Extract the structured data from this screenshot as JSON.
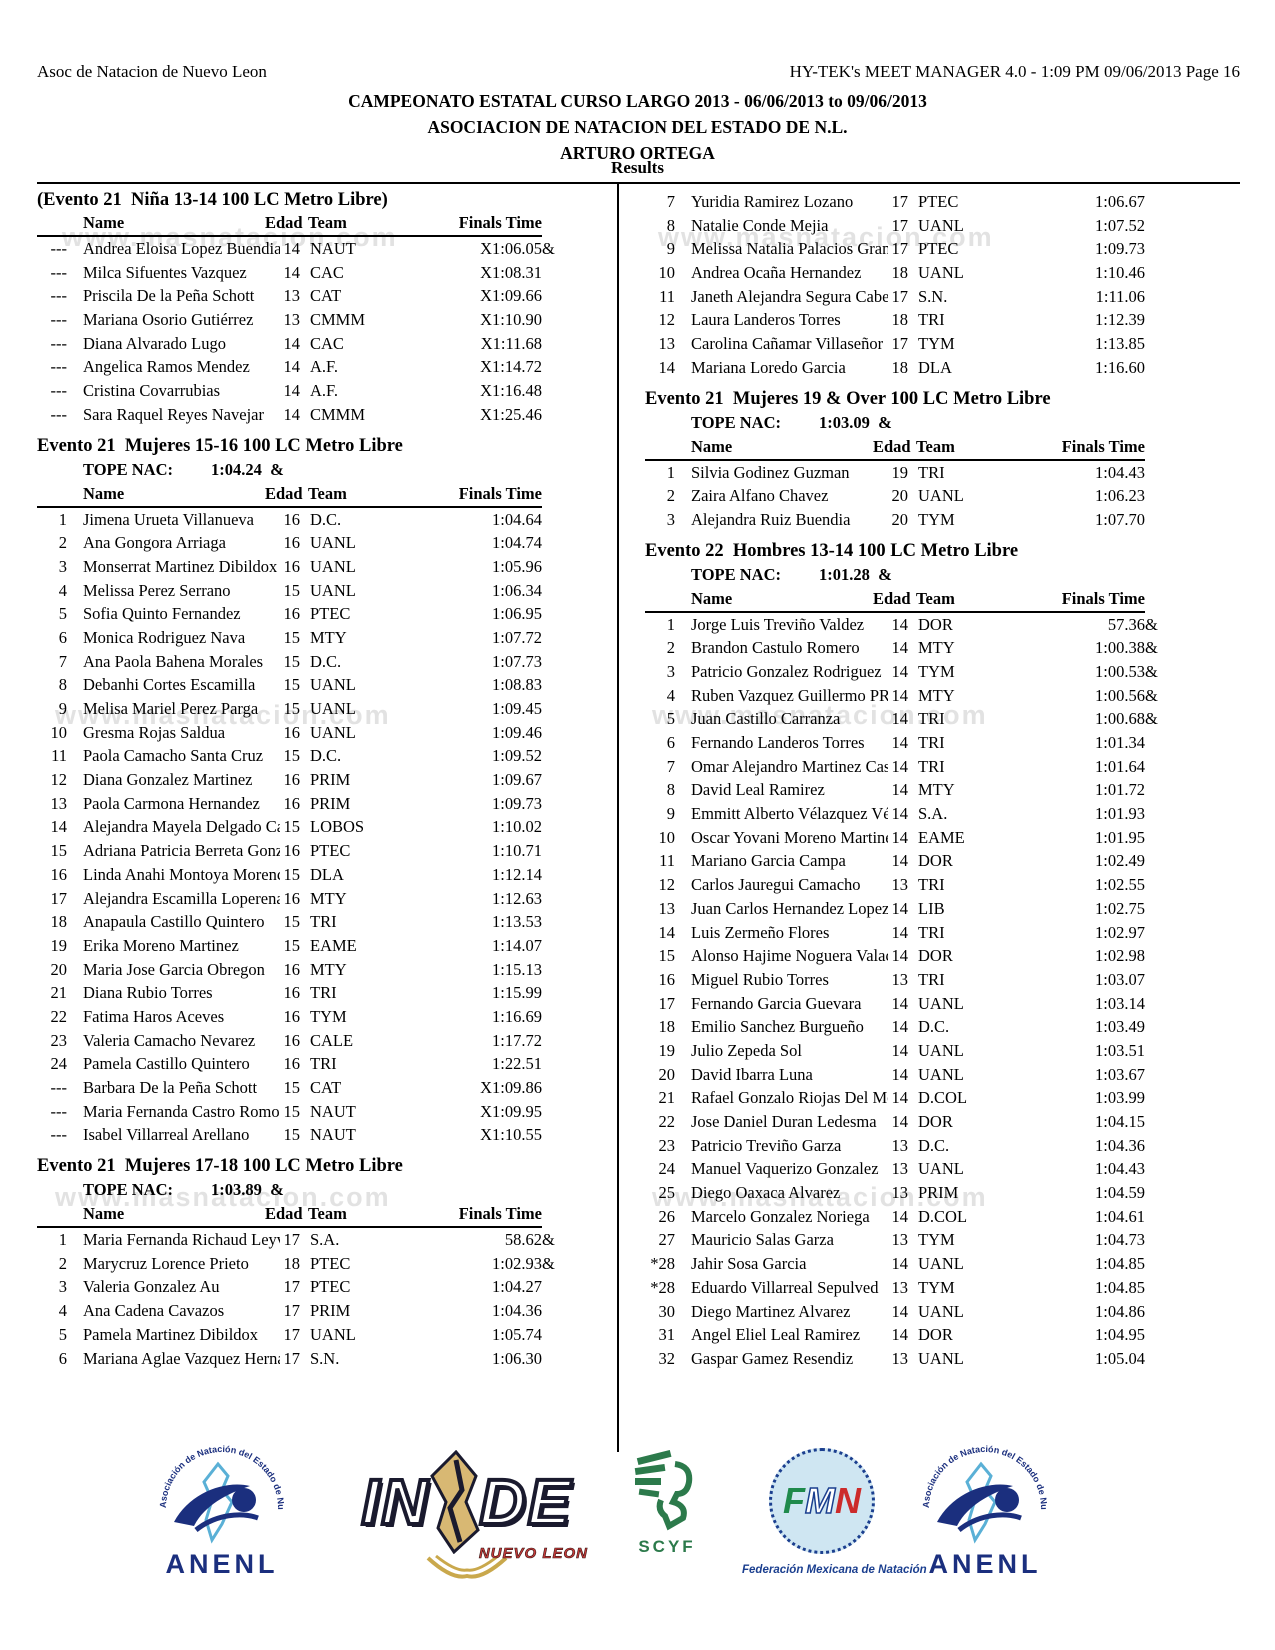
{
  "page_header": {
    "left": "Asoc de Natacion de Nuevo Leon",
    "right": "HY-TEK's MEET MANAGER 4.0 - 1:09 PM  09/06/2013  Page 16"
  },
  "title": {
    "line1": "CAMPEONATO ESTATAL CURSO LARGO 2013 - 06/06/2013 to 09/06/2013",
    "line2": "ASOCIACION DE NATACION DEL ESTADO DE N.L.",
    "line3": "ARTURO ORTEGA",
    "results_label": "Results"
  },
  "watermark": "www.masnatacion.com",
  "table_headers": {
    "name": "Name",
    "edad": "Edad",
    "team": "Team",
    "finals": "Finals Time"
  },
  "tope_label": "TOPE NAC:",
  "columns": {
    "left": {
      "sections": [
        {
          "heading": "(Evento 21  Niña 13-14 100 LC Metro Libre)",
          "tope": null,
          "show_header": true,
          "rows": [
            [
              "---",
              "Andrea Eloisa Lopez Buendia",
              "14",
              "NAUT",
              "X1:06.05&"
            ],
            [
              "---",
              "Milca Sifuentes Vazquez",
              "14",
              "CAC",
              "X1:08.31"
            ],
            [
              "---",
              "Priscila De la Peña Schott",
              "13",
              "CAT",
              "X1:09.66"
            ],
            [
              "---",
              "Mariana Osorio Gutiérrez",
              "13",
              "CMMM",
              "X1:10.90"
            ],
            [
              "---",
              "Diana Alvarado Lugo",
              "14",
              "CAC",
              "X1:11.68"
            ],
            [
              "---",
              "Angelica Ramos Mendez",
              "14",
              "A.F.",
              "X1:14.72"
            ],
            [
              "---",
              "Cristina Covarrubias",
              "14",
              "A.F.",
              "X1:16.48"
            ],
            [
              "---",
              "Sara Raquel Reyes Navejar",
              "14",
              "CMMM",
              "X1:25.46"
            ]
          ]
        },
        {
          "heading": "Evento 21  Mujeres 15-16 100 LC Metro Libre",
          "tope": "1:04.24  &",
          "show_header": true,
          "rows": [
            [
              "1",
              "Jimena Urueta Villanueva",
              "16",
              "D.C.",
              "1:04.64"
            ],
            [
              "2",
              "Ana Gongora Arriaga",
              "16",
              "UANL",
              "1:04.74"
            ],
            [
              "3",
              "Monserrat Martinez Dibildox",
              "16",
              "UANL",
              "1:05.96"
            ],
            [
              "4",
              "Melissa Perez Serrano",
              "15",
              "UANL",
              "1:06.34"
            ],
            [
              "5",
              "Sofia Quinto Fernandez",
              "16",
              "PTEC",
              "1:06.95"
            ],
            [
              "6",
              "Monica Rodriguez Nava",
              "15",
              "MTY",
              "1:07.72"
            ],
            [
              "7",
              "Ana Paola Bahena Morales",
              "15",
              "D.C.",
              "1:07.73"
            ],
            [
              "8",
              "Debanhi Cortes Escamilla",
              "15",
              "UANL",
              "1:08.83"
            ],
            [
              "9",
              "Melisa Mariel Perez Parga",
              "15",
              "UANL",
              "1:09.45"
            ],
            [
              "10",
              "Gresma Rojas Saldua",
              "16",
              "UANL",
              "1:09.46"
            ],
            [
              "11",
              "Paola Camacho Santa Cruz",
              "15",
              "D.C.",
              "1:09.52"
            ],
            [
              "12",
              "Diana Gonzalez Martinez",
              "16",
              "PRIM",
              "1:09.67"
            ],
            [
              "13",
              "Paola Carmona Hernandez",
              "16",
              "PRIM",
              "1:09.73"
            ],
            [
              "14",
              "Alejandra Mayela Delgado Ca",
              "15",
              "LOBOS",
              "1:10.02"
            ],
            [
              "15",
              "Adriana Patricia Berreta Gonz",
              "16",
              "PTEC",
              "1:10.71"
            ],
            [
              "16",
              "Linda Anahi Montoya Morenc",
              "15",
              "DLA",
              "1:12.14"
            ],
            [
              "17",
              "Alejandra Escamilla Loperena",
              "16",
              "MTY",
              "1:12.63"
            ],
            [
              "18",
              "Anapaula Castillo Quintero",
              "15",
              "TRI",
              "1:13.53"
            ],
            [
              "19",
              "Erika Moreno Martinez",
              "15",
              "EAME",
              "1:14.07"
            ],
            [
              "20",
              "Maria Jose Garcia Obregon",
              "16",
              "MTY",
              "1:15.13"
            ],
            [
              "21",
              "Diana Rubio Torres",
              "16",
              "TRI",
              "1:15.99"
            ],
            [
              "22",
              "Fatima Haros Aceves",
              "16",
              "TYM",
              "1:16.69"
            ],
            [
              "23",
              "Valeria Camacho Nevarez",
              "16",
              "CALE",
              "1:17.72"
            ],
            [
              "24",
              "Pamela Castillo Quintero",
              "16",
              "TRI",
              "1:22.51"
            ],
            [
              "---",
              "Barbara De la Peña Schott",
              "15",
              "CAT",
              "X1:09.86"
            ],
            [
              "---",
              "Maria Fernanda Castro Romo",
              "15",
              "NAUT",
              "X1:09.95"
            ],
            [
              "---",
              "Isabel Villarreal Arellano",
              "15",
              "NAUT",
              "X1:10.55"
            ]
          ]
        },
        {
          "heading": "Evento 21  Mujeres 17-18 100 LC Metro Libre",
          "tope": "1:03.89  &",
          "show_header": true,
          "rows": [
            [
              "1",
              "Maria Fernanda Richaud Leyv",
              "17",
              "S.A.",
              "58.62&"
            ],
            [
              "2",
              "Marycruz Lorence Prieto",
              "18",
              "PTEC",
              "1:02.93&"
            ],
            [
              "3",
              "Valeria Gonzalez Au",
              "17",
              "PTEC",
              "1:04.27"
            ],
            [
              "4",
              "Ana Cadena Cavazos",
              "17",
              "PRIM",
              "1:04.36"
            ],
            [
              "5",
              "Pamela Martinez Dibildox",
              "17",
              "UANL",
              "1:05.74"
            ],
            [
              "6",
              "Mariana Aglae Vazquez Herna",
              "17",
              "S.N.",
              "1:06.30"
            ]
          ]
        }
      ]
    },
    "right": {
      "sections": [
        {
          "heading": null,
          "tope": null,
          "show_header": false,
          "rows": [
            [
              "7",
              "Yuridia Ramirez Lozano",
              "17",
              "PTEC",
              "1:06.67"
            ],
            [
              "8",
              "Natalie Conde Mejia",
              "17",
              "UANL",
              "1:07.52"
            ],
            [
              "9",
              "Melissa Natalia Palacios Gran",
              "17",
              "PTEC",
              "1:09.73"
            ],
            [
              "10",
              "Andrea Ocaña Hernandez",
              "18",
              "UANL",
              "1:10.46"
            ],
            [
              "11",
              "Janeth Alejandra Segura Cabe",
              "17",
              "S.N.",
              "1:11.06"
            ],
            [
              "12",
              "Laura Landeros Torres",
              "18",
              "TRI",
              "1:12.39"
            ],
            [
              "13",
              "Carolina Cañamar Villaseñor",
              "17",
              "TYM",
              "1:13.85"
            ],
            [
              "14",
              "Mariana Loredo Garcia",
              "18",
              "DLA",
              "1:16.60"
            ]
          ]
        },
        {
          "heading": "Evento 21  Mujeres 19 & Over 100 LC Metro Libre",
          "tope": "1:03.09  &",
          "show_header": true,
          "rows": [
            [
              "1",
              "Silvia Godinez Guzman",
              "19",
              "TRI",
              "1:04.43"
            ],
            [
              "2",
              "Zaira Alfano Chavez",
              "20",
              "UANL",
              "1:06.23"
            ],
            [
              "3",
              "Alejandra Ruiz Buendia",
              "20",
              "TYM",
              "1:07.70"
            ]
          ]
        },
        {
          "heading": "Evento 22  Hombres 13-14 100 LC Metro Libre",
          "tope": "1:01.28  &",
          "show_header": true,
          "rows": [
            [
              "1",
              "Jorge Luis Treviño Valdez",
              "14",
              "DOR",
              "57.36&"
            ],
            [
              "2",
              "Brandon Castulo Romero",
              "14",
              "MTY",
              "1:00.38&"
            ],
            [
              "3",
              "Patricio Gonzalez Rodriguez",
              "14",
              "TYM",
              "1:00.53&"
            ],
            [
              "4",
              "Ruben Vazquez Guillermo PR",
              "14",
              "MTY",
              "1:00.56&"
            ],
            [
              "5",
              "Juan Castillo Carranza",
              "14",
              "TRI",
              "1:00.68&"
            ],
            [
              "6",
              "Fernando Landeros Torres",
              "14",
              "TRI",
              "1:01.34"
            ],
            [
              "7",
              "Omar Alejandro Martinez Cas",
              "14",
              "TRI",
              "1:01.64"
            ],
            [
              "8",
              "David Leal Ramirez",
              "14",
              "MTY",
              "1:01.72"
            ],
            [
              "9",
              "Emmitt Alberto Vélazquez Vé",
              "14",
              "S.A.",
              "1:01.93"
            ],
            [
              "10",
              "Oscar Yovani Moreno Martine",
              "14",
              "EAME",
              "1:01.95"
            ],
            [
              "11",
              "Mariano Garcia Campa",
              "14",
              "DOR",
              "1:02.49"
            ],
            [
              "12",
              "Carlos Jauregui Camacho",
              "13",
              "TRI",
              "1:02.55"
            ],
            [
              "13",
              "Juan Carlos Hernandez Lopez",
              "14",
              "LIB",
              "1:02.75"
            ],
            [
              "14",
              "Luis Zermeño Flores",
              "14",
              "TRI",
              "1:02.97"
            ],
            [
              "15",
              "Alonso Hajime Noguera Valac",
              "14",
              "DOR",
              "1:02.98"
            ],
            [
              "16",
              "Miguel Rubio Torres",
              "13",
              "TRI",
              "1:03.07"
            ],
            [
              "17",
              "Fernando Garcia Guevara",
              "14",
              "UANL",
              "1:03.14"
            ],
            [
              "18",
              "Emilio Sanchez Burgueño",
              "14",
              "D.C.",
              "1:03.49"
            ],
            [
              "19",
              "Julio Zepeda Sol",
              "14",
              "UANL",
              "1:03.51"
            ],
            [
              "20",
              "David Ibarra Luna",
              "14",
              "UANL",
              "1:03.67"
            ],
            [
              "21",
              "Rafael Gonzalo Riojas Del Mo",
              "14",
              "D.COL",
              "1:03.99"
            ],
            [
              "22",
              "Jose Daniel Duran Ledesma",
              "14",
              "DOR",
              "1:04.15"
            ],
            [
              "23",
              "Patricio Treviño Garza",
              "13",
              "D.C.",
              "1:04.36"
            ],
            [
              "24",
              "Manuel Vaquerizo Gonzalez",
              "13",
              "UANL",
              "1:04.43"
            ],
            [
              "25",
              "Diego Oaxaca Alvarez",
              "13",
              "PRIM",
              "1:04.59"
            ],
            [
              "26",
              "Marcelo Gonzalez Noriega",
              "14",
              "D.COL",
              "1:04.61"
            ],
            [
              "27",
              "Mauricio Salas Garza",
              "13",
              "TYM",
              "1:04.73"
            ],
            [
              "*28",
              "Jahir Sosa Garcia",
              "14",
              "UANL",
              "1:04.85"
            ],
            [
              "*28",
              "Eduardo Villarreal Sepulved",
              "13",
              "TYM",
              "1:04.85"
            ],
            [
              "30",
              "Diego Martinez Alvarez",
              "14",
              "UANL",
              "1:04.86"
            ],
            [
              "31",
              "Angel Eliel Leal Ramirez",
              "14",
              "DOR",
              "1:04.95"
            ],
            [
              "32",
              "Gaspar Gamez Resendiz",
              "13",
              "UANL",
              "1:05.04"
            ]
          ]
        }
      ]
    }
  },
  "footer": {
    "anenl": {
      "arc_text": "Asociación de Natación del Estado de Nuevo León",
      "label": "ANENL"
    },
    "inde": {
      "label_in": "IN",
      "label_de": "DE",
      "sub": "NUEVO LEON"
    },
    "scyf": {
      "label": "SCYF"
    },
    "fmn": {
      "letter_f": "F",
      "letter_m": "M",
      "letter_n": "N",
      "caption": "Federación Mexicana de Natación"
    }
  }
}
